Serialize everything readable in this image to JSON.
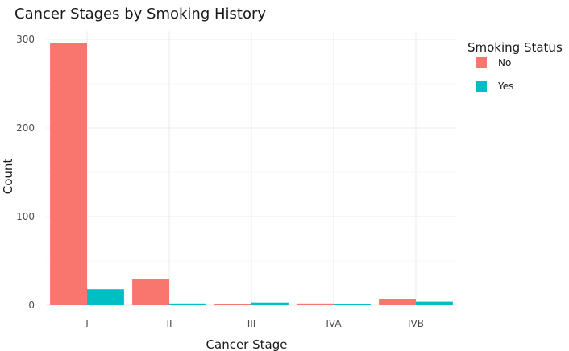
{
  "chart_data": {
    "type": "bar",
    "title": "Cancer Stages by Smoking History",
    "xlabel": "Cancer Stage",
    "ylabel": "Count",
    "categories": [
      "I",
      "II",
      "III",
      "IVA",
      "IVB"
    ],
    "series": [
      {
        "name": "No",
        "values": [
          296,
          30,
          1,
          2,
          7
        ],
        "color": "#F8766D"
      },
      {
        "name": "Yes",
        "values": [
          18,
          2,
          3,
          1,
          4
        ],
        "color": "#00BFC4"
      }
    ],
    "ylim": [
      0,
      310
    ],
    "yticks": [
      0,
      100,
      200,
      300
    ],
    "grid": true,
    "legend": {
      "title": "Smoking Status",
      "position": "right"
    }
  }
}
